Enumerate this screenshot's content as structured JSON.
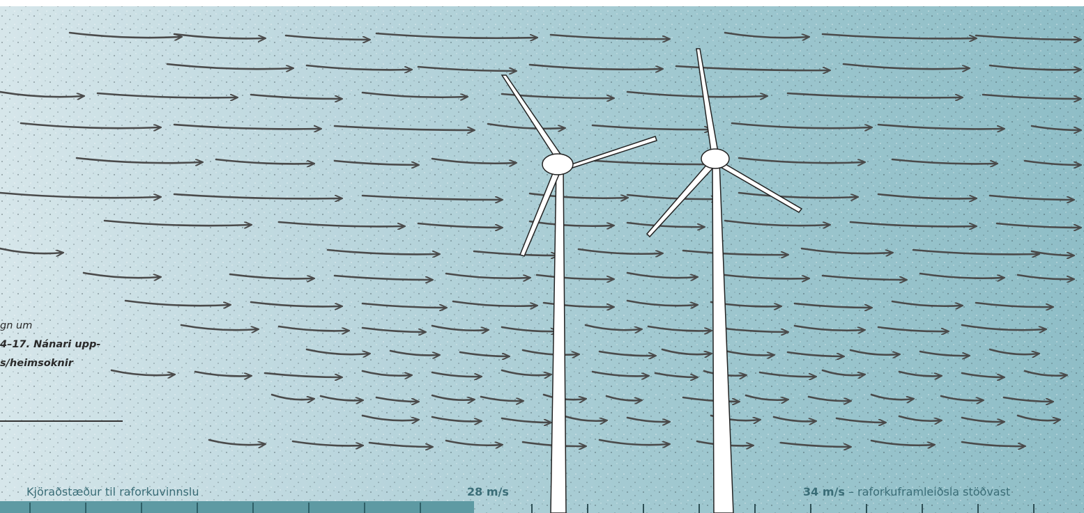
{
  "caption": {
    "lines": [
      "gn um",
      "4–17. Nánari upp-",
      "s/heimsoknir"
    ]
  },
  "scale": {
    "range_label": "Kjöraðstæður til raforkuvinnslu",
    "speed_28": "28 m/s",
    "speed_34": "34 m/s",
    "stop_label": "– raforkuframleiðsla stöðvast"
  },
  "colors": {
    "sky_left": "#d6e6ea",
    "sky_right": "#8fbec7",
    "arrow": "#4a4a4a",
    "turbine": "#ffffff",
    "scale_band": "#5e9aa3",
    "label_text": "#3a6d77"
  },
  "illustration": {
    "subject": "wind-turbines-icon",
    "turbine_count": 2,
    "arrow_direction": "right"
  }
}
